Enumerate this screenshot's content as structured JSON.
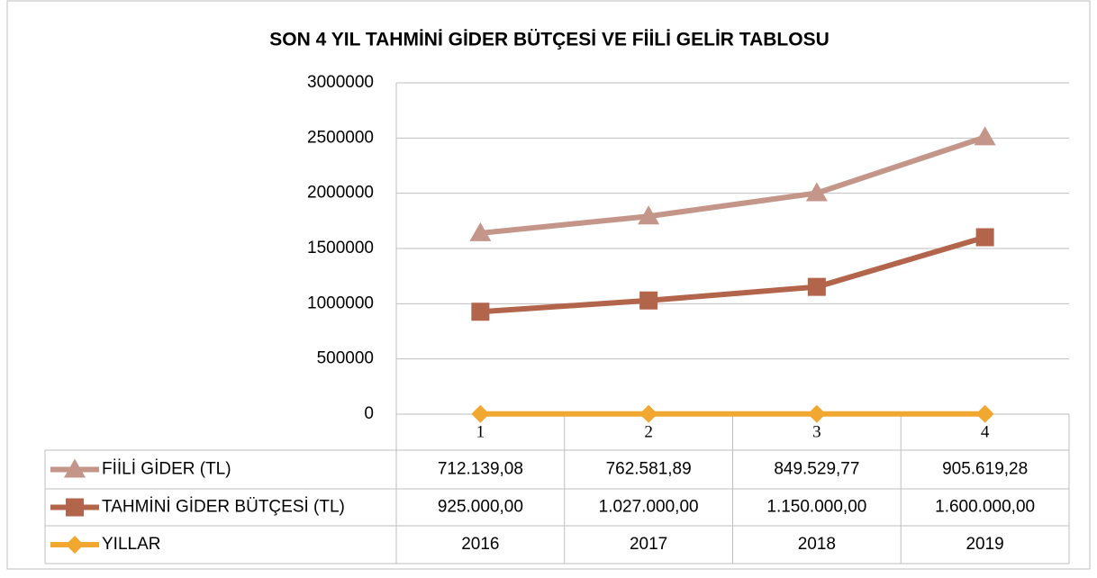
{
  "chart_data": {
    "type": "line",
    "stacked": true,
    "title": "SON 4 YIL TAHMİNİ GİDER BÜTÇESİ VE FİİLİ GELİR TABLOSU",
    "categories": [
      1,
      2,
      3,
      4
    ],
    "series": [
      {
        "name": "FİİLİ GİDER (TL)",
        "color": "#c4968a",
        "marker": "triangle",
        "values": [
          712139.08,
          762581.89,
          849529.77,
          905619.28
        ],
        "value_labels": [
          "712.139,08",
          "762.581,89",
          "849.529,77",
          "905.619,28"
        ]
      },
      {
        "name": "TAHMİNİ GİDER BÜTÇESİ (TL)",
        "color": "#b3654b",
        "marker": "square",
        "values": [
          925000,
          1027000,
          1150000,
          1600000
        ],
        "value_labels": [
          "925.000,00",
          "1.027.000,00",
          "1.150.000,00",
          "1.600.000,00"
        ]
      },
      {
        "name": "YILLAR",
        "color": "#f0a830",
        "marker": "diamond",
        "values": [
          2016,
          2017,
          2018,
          2019
        ]
      }
    ],
    "ylim": [
      0,
      3000000
    ],
    "yticks": [
      0,
      500000,
      1000000,
      1500000,
      2000000,
      2500000,
      3000000
    ],
    "grid": true
  }
}
